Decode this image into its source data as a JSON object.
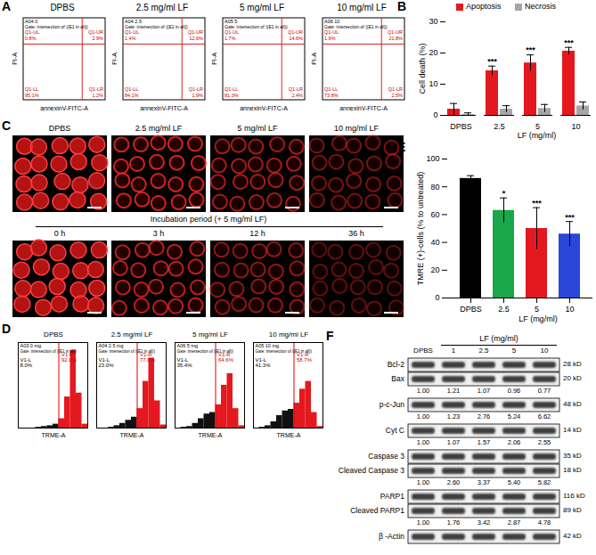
{
  "panel_letters": [
    "A",
    "B",
    "C",
    "D",
    "E",
    "F"
  ],
  "annexin_flow": {
    "x_label": "annexinV-FITC-A",
    "y_label": "PI-A",
    "gate_text": "Gate: intersection of ((E1 in all))",
    "tick_labels": false,
    "panels": [
      {
        "title": "DPBS",
        "sample": "A04 0",
        "quadrants": [
          {
            "name": "Q1-UL",
            "label": "0.8%"
          },
          {
            "name": "Q1-UR",
            "label": "2.9%"
          },
          {
            "name": "Q1-LL",
            "label": "95.1%"
          },
          {
            "name": "Q1-LR",
            "label": "1.2%"
          }
        ]
      },
      {
        "title": "2.5 mg/ml LF",
        "sample": "A04 2.5",
        "quadrants": [
          {
            "name": "Q1-UL",
            "label": "1.4%"
          },
          {
            "name": "Q1-UR",
            "label": "12.6%"
          },
          {
            "name": "Q1-LL",
            "label": "84.1%"
          },
          {
            "name": "Q1-LR",
            "label": "1.9%"
          }
        ]
      },
      {
        "title": "5 mg/ml LF",
        "sample": "A05 5",
        "quadrants": [
          {
            "name": "Q1-UL",
            "label": "1.7%"
          },
          {
            "name": "Q1-UR",
            "label": "14.6%"
          },
          {
            "name": "Q1-LL",
            "label": "81.3%"
          },
          {
            "name": "Q1-LR",
            "label": "2.4%"
          }
        ]
      },
      {
        "title": "10 mg/ml LF",
        "sample": "A06 10",
        "quadrants": [
          {
            "name": "Q1-UL",
            "label": "1.9%"
          },
          {
            "name": "Q1-UR",
            "label": "21.8%"
          },
          {
            "name": "Q1-LL",
            "label": "73.8%"
          },
          {
            "name": "Q1-LR",
            "label": "2.5%"
          }
        ]
      }
    ]
  },
  "chart_data": [
    {
      "type": "bar",
      "categories": [
        "DPBS",
        "2.5",
        "5",
        "10"
      ],
      "x_label": "LF (mg/ml)",
      "y_label": "Cell death (%)",
      "ylim": [
        0,
        30
      ],
      "yticks": [
        0,
        10,
        20,
        30
      ],
      "legend": "top",
      "series": [
        {
          "name": "Apoptosis",
          "color": "#e3191f",
          "values": [
            2.0,
            14.3,
            16.8,
            20.6
          ],
          "errors": [
            1.8,
            1.5,
            2.6,
            1.2
          ]
        },
        {
          "name": "Necrosis",
          "color": "#a6a6a6",
          "values": [
            0.3,
            2.0,
            2.2,
            3.0
          ],
          "errors": [
            0.5,
            1.1,
            1.3,
            1.3
          ]
        }
      ],
      "annotations": [
        {
          "category": "2.5",
          "series": "Apoptosis",
          "text": "***"
        },
        {
          "category": "5",
          "series": "Apoptosis",
          "text": "***"
        },
        {
          "category": "10",
          "series": "Apoptosis",
          "text": "***"
        }
      ]
    },
    {
      "type": "bar",
      "categories": [
        "DPBS",
        "2.5",
        "5",
        "10"
      ],
      "x_label": "LF (mg/ml)",
      "y_label": "TMRE (+)-cells (% to untreated)",
      "ylim": [
        0,
        100
      ],
      "yticks": [
        0,
        20,
        40,
        60,
        80,
        100
      ],
      "colors": [
        "#000000",
        "#1aa64a",
        "#e3191f",
        "#2a46d8"
      ],
      "values": [
        86,
        63,
        50,
        46
      ],
      "errors": [
        2,
        9,
        15,
        9
      ],
      "annotations": [
        {
          "category": "2.5",
          "text": "*"
        },
        {
          "category": "5",
          "text": "***"
        },
        {
          "category": "10",
          "text": "***"
        }
      ]
    }
  ],
  "imaging": {
    "top_labels": [
      "DPBS",
      "2.5 mg/ml LF",
      "5 mg/ml LF",
      "10 mg/ml LF"
    ],
    "bottom_title": "Incubation period (+ 5 mg/ml LF)",
    "bottom_labels": [
      "0 h",
      "3 h",
      "12 h",
      "36 h"
    ]
  },
  "tmre_flow": {
    "x_label": "TRME-A",
    "gate_text": "Gate: intersection of ((E1 in all))",
    "tick_labels": false,
    "bins": [
      0,
      1,
      2,
      3,
      4,
      5,
      6,
      7,
      8,
      9,
      10,
      11,
      12
    ],
    "gate_position": 7,
    "ylim": [
      0,
      110
    ],
    "panels": [
      {
        "title": "DPBS",
        "sample": "A03 0 mg",
        "left": {
          "name": "V1-L",
          "label": "8.0%"
        },
        "right": {
          "name": "V1-R",
          "label": "92.0%"
        },
        "counts": [
          0,
          0,
          0,
          1,
          2,
          3,
          5,
          12,
          40,
          100,
          45,
          5
        ]
      },
      {
        "title": "2.5 mg/ml LF",
        "sample": "A04 2.5 mg",
        "left": {
          "name": "V1-L",
          "label": "23.0%"
        },
        "right": {
          "name": "V1-R",
          "label": "77.0%"
        },
        "counts": [
          0,
          0,
          1,
          3,
          6,
          10,
          14,
          25,
          60,
          90,
          35,
          4
        ]
      },
      {
        "title": "5 mg/ml LF",
        "sample": "A06 5 mg",
        "left": {
          "name": "V1-L",
          "label": "35.4%"
        },
        "right": {
          "name": "V1-R",
          "label": "64.6%"
        },
        "counts": [
          0,
          1,
          2,
          6,
          12,
          18,
          20,
          30,
          55,
          70,
          25,
          3
        ]
      },
      {
        "title": "10 mg/ml LF",
        "sample": "A05 10 mg",
        "left": {
          "name": "V1-L",
          "label": "41.3%"
        },
        "right": {
          "name": "V1-R",
          "label": "58.7%"
        },
        "counts": [
          0,
          1,
          3,
          8,
          16,
          22,
          24,
          32,
          50,
          60,
          20,
          2
        ]
      }
    ]
  },
  "western": {
    "header": "LF (mg/ml)",
    "lanes": [
      "DPBS",
      "1",
      "2.5",
      "5",
      "10"
    ],
    "groups": [
      {
        "bands": [
          {
            "name": "Bcl-2",
            "size": "28 kD"
          },
          {
            "name": "Bax",
            "size": "20 kD"
          }
        ],
        "ratios": [
          "1.00",
          "1.21",
          "1.07",
          "0.96",
          "0.77"
        ]
      },
      {
        "bands": [
          {
            "name": "p-c-Jun",
            "size": "48 kD"
          }
        ],
        "ratios": [
          "1.00",
          "1.23",
          "2.76",
          "5.24",
          "6.62"
        ]
      },
      {
        "bands": [
          {
            "name": "Cyt C",
            "size": "14 kD"
          }
        ],
        "ratios": [
          "1.00",
          "1.07",
          "1.57",
          "2.06",
          "2.55"
        ]
      },
      {
        "bands": [
          {
            "name": "Caspase 3",
            "size": "35 kD"
          },
          {
            "name": "Cleaved Caspase 3",
            "size": "18 kD"
          }
        ],
        "ratios": [
          "1.00",
          "2.60",
          "3.37",
          "5.40",
          "5.82"
        ]
      },
      {
        "bands": [
          {
            "name": "PARP1",
            "size": "116 kD"
          },
          {
            "name": "Cleaved PARP1",
            "size": "89 kD"
          }
        ],
        "ratios": [
          "1.00",
          "1.76",
          "3.42",
          "2.87",
          "4.78"
        ]
      },
      {
        "bands": [
          {
            "name": "β -Actin",
            "size": "42 kD"
          }
        ]
      }
    ]
  }
}
